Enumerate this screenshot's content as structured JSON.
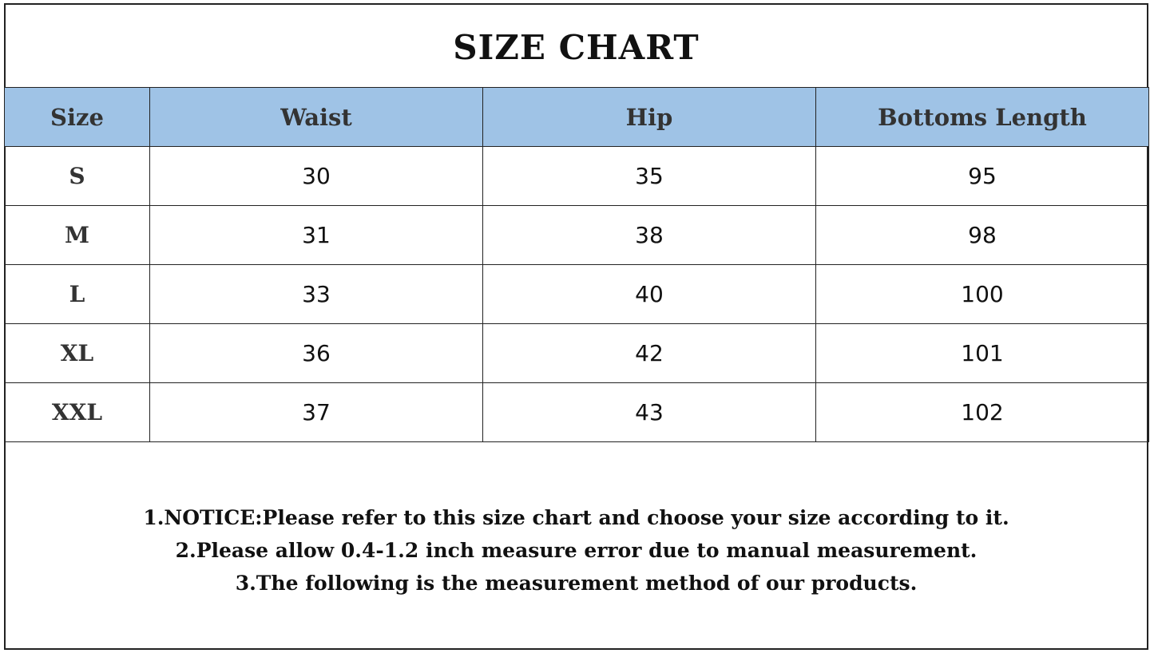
{
  "title": "SIZE CHART",
  "chart_data": {
    "type": "table",
    "title": "SIZE CHART",
    "columns": [
      "Size",
      "Waist",
      "Hip",
      "Bottoms Length"
    ],
    "rows": [
      [
        "S",
        "30",
        "35",
        "95"
      ],
      [
        "M",
        "31",
        "38",
        "98"
      ],
      [
        "L",
        "33",
        "40",
        "100"
      ],
      [
        "XL",
        "36",
        "42",
        "101"
      ],
      [
        "XXL",
        "37",
        "43",
        "102"
      ]
    ],
    "header_color": "#9fc3e6"
  },
  "notes": [
    "1.NOTICE:Please refer to this size chart and choose your size according to it.",
    "2.Please allow 0.4-1.2 inch measure error due to manual measurement.",
    "3.The following is the measurement method of our products."
  ]
}
